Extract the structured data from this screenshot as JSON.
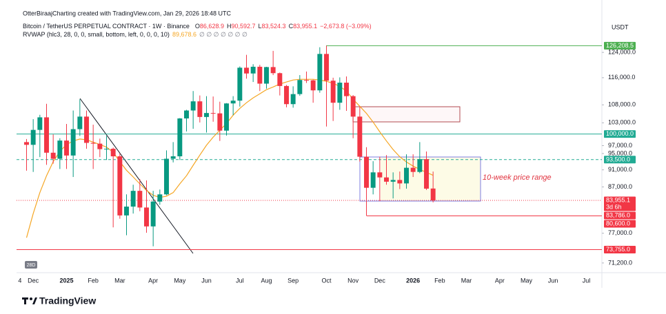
{
  "chart_data": {
    "type": "candlestick",
    "attribution": "OtterBiraajCharting created with TradingView.com, Jan 29, 2026 18:48 UTC",
    "symbol": "Bitcoin / TetherUS PERPETUAL CONTRACT · 1W · Binance",
    "ohlc_legend": [
      {
        "key": "O",
        "value": "86,628.9"
      },
      {
        "key": "H",
        "value": "90,592.7"
      },
      {
        "key": "L",
        "value": "83,524.3"
      },
      {
        "key": "C",
        "value": "83,955.1"
      }
    ],
    "change": "−2,673.8 (−3.09%)",
    "indicator": {
      "name": "RVWAP (hlc3, 28, 0, 0, small, bottom, left, 0, 0, 0, 10)",
      "value": "89,678.6",
      "extra": "∅ ∅ ∅ ∅ ∅ ∅ ∅"
    },
    "currency": "USDT",
    "badge": "28D",
    "brand": "TradingView",
    "annotation": "10-week price range",
    "log": true,
    "ylim": [
      69400,
      139800
    ],
    "yticks": [
      {
        "value": 124000,
        "label": "124,000.0"
      },
      {
        "value": 116000,
        "label": "116,000.0"
      },
      {
        "value": 108000,
        "label": "108,000.0"
      },
      {
        "value": 103000,
        "label": "103,000.0"
      },
      {
        "value": 97000,
        "label": "97,000.0"
      },
      {
        "value": 95000,
        "label": "95,000.0"
      },
      {
        "value": 91000,
        "label": "91,000.0"
      },
      {
        "value": 87000,
        "label": "87,000.0"
      },
      {
        "value": 77000,
        "label": "77,000.0"
      },
      {
        "value": 71200,
        "label": "71,200.0"
      }
    ],
    "up_color": "#089981",
    "down_color": "#f23645",
    "categories": [
      "4",
      null,
      "Dec",
      null,
      null,
      null,
      null,
      "2025",
      null,
      null,
      null,
      "Feb",
      null,
      null,
      null,
      "Mar",
      null,
      null,
      null,
      null,
      "Apr",
      null,
      null,
      null,
      "May",
      null,
      null,
      null,
      "Jun",
      null,
      null,
      null,
      null,
      "Jul",
      null,
      null,
      null,
      "Aug",
      null,
      null,
      null,
      "Sep",
      null,
      null,
      null,
      null,
      "Oct",
      null,
      null,
      null,
      "Nov",
      null,
      null,
      null,
      "Dec",
      null,
      null,
      null,
      null,
      "2026",
      null,
      null,
      null,
      "Feb",
      null,
      null,
      null,
      "Mar",
      null,
      null,
      null,
      null,
      "Apr",
      null,
      null,
      null,
      "May",
      null,
      null,
      null,
      "Jun",
      null,
      null,
      null,
      null,
      "Jul",
      null
    ],
    "open": [
      null,
      97900,
      97200,
      101100,
      104500,
      95200,
      93700,
      98300,
      94500,
      101300,
      104700,
      97700,
      97500,
      96100,
      96200,
      94300,
      80700,
      82600,
      86100,
      82400,
      78400,
      83700,
      85300,
      93700,
      94300,
      104200,
      106400,
      109000,
      104600,
      105700,
      105600,
      100900,
      108400,
      109200,
      119100,
      117300,
      119400,
      114200,
      119300,
      117400,
      113500,
      108200,
      111100,
      115300,
      115200,
      112200,
      123500,
      115100,
      108600,
      114500,
      110500,
      104700,
      94200,
      86800,
      90400,
      89200,
      88200,
      88600,
      87800,
      91500,
      90500,
      93600,
      86628.9,
      null,
      null,
      null,
      null,
      null,
      null,
      null,
      null,
      null,
      null,
      null,
      null,
      null,
      null,
      null,
      null,
      null,
      null,
      null,
      null,
      null,
      null,
      null,
      null
    ],
    "high": [
      null,
      98700,
      104000,
      105200,
      108300,
      99900,
      98900,
      102700,
      106400,
      109600,
      106400,
      102500,
      98800,
      99500,
      96500,
      95000,
      85300,
      87500,
      88800,
      88500,
      86100,
      86400,
      95800,
      97900,
      104300,
      106600,
      112000,
      110700,
      110500,
      110400,
      108900,
      108500,
      110500,
      119500,
      123200,
      120200,
      120000,
      119400,
      124500,
      117600,
      113800,
      113400,
      116800,
      117900,
      115400,
      125700,
      126200,
      116000,
      116100,
      116400,
      110800,
      107500,
      96600,
      93100,
      94200,
      94600,
      90400,
      90600,
      94800,
      94800,
      97900,
      95500,
      90592.7,
      null,
      null,
      null,
      null,
      null,
      null,
      null,
      null,
      null,
      null,
      null,
      null,
      null,
      null,
      null,
      null,
      null,
      null,
      null,
      null,
      null,
      null,
      null,
      null
    ],
    "low": [
      null,
      90800,
      90500,
      94100,
      92200,
      92500,
      91200,
      91200,
      89300,
      99500,
      96200,
      91200,
      94100,
      93400,
      78200,
      80000,
      76600,
      81100,
      81600,
      77100,
      74400,
      83000,
      85100,
      92800,
      93400,
      100700,
      101400,
      103100,
      100400,
      103300,
      98200,
      99600,
      105100,
      107500,
      115700,
      114700,
      112000,
      112700,
      116800,
      110700,
      107300,
      107200,
      110600,
      114400,
      108600,
      111500,
      102000,
      103500,
      106600,
      106300,
      98900,
      93000,
      80600,
      85300,
      83800,
      87500,
      84400,
      86500,
      86600,
      89300,
      90200,
      86300,
      83524.3,
      null,
      null,
      null,
      null,
      null,
      null,
      null,
      null,
      null,
      null,
      null,
      null,
      null,
      null,
      null,
      null,
      null,
      null,
      null,
      null,
      null,
      null,
      null,
      null
    ],
    "close": [
      null,
      97200,
      101100,
      104500,
      95200,
      93700,
      98300,
      94500,
      101300,
      104700,
      97700,
      97500,
      96100,
      96200,
      94300,
      80700,
      82600,
      86100,
      82400,
      78400,
      83700,
      85300,
      93700,
      94300,
      104200,
      106400,
      109000,
      104600,
      105700,
      105600,
      100900,
      108400,
      109200,
      119100,
      117300,
      119400,
      114200,
      119300,
      117400,
      113500,
      108200,
      111100,
      115300,
      115200,
      112200,
      123500,
      115100,
      108600,
      114500,
      110500,
      104700,
      94200,
      86800,
      90400,
      89200,
      88200,
      88600,
      87800,
      91500,
      90500,
      93600,
      86600,
      83955.1,
      null,
      null,
      null,
      null,
      null,
      null,
      null,
      null,
      null,
      null,
      null,
      null,
      null,
      null,
      null,
      null,
      null,
      null,
      null,
      null,
      null,
      null,
      null,
      null
    ],
    "rvwap": {
      "color": "#f5a623",
      "values": [
        null,
        76100,
        81100,
        85700,
        89600,
        93000,
        95500,
        97300,
        98200,
        98700,
        98500,
        97900,
        97300,
        96600,
        95300,
        93000,
        90900,
        89300,
        87700,
        86200,
        85100,
        84600,
        84900,
        85700,
        87700,
        89600,
        92100,
        94600,
        97100,
        99200,
        101000,
        102800,
        105100,
        107000,
        108600,
        110000,
        111200,
        112400,
        113200,
        114100,
        114700,
        115300,
        115500,
        115500,
        115500,
        115300,
        114900,
        114300,
        113400,
        112000,
        109600,
        107600,
        105600,
        103200,
        100600,
        98200,
        96000,
        94200,
        92900,
        91900,
        91100,
        90400,
        89700,
        null,
        null,
        null,
        null,
        null,
        null,
        null,
        null,
        null,
        null,
        null,
        null,
        null,
        null,
        null,
        null,
        null,
        null,
        null,
        null,
        null,
        null,
        null,
        null
      ]
    },
    "levels": [
      {
        "value": 126208.5,
        "label": "126,208.5",
        "color": "#4caf50",
        "style": "solid"
      },
      {
        "value": 100000,
        "label": "100,000.0",
        "color": "#22ab94",
        "style": "solid"
      },
      {
        "value": 93500,
        "label": "93,500.0",
        "color": "#22ab94",
        "style": "dashed"
      },
      {
        "value": 83955.1,
        "label": "83,955.1",
        "sub": "3d 6h",
        "color": "#f23645",
        "style": "dotted"
      },
      {
        "value": 83786,
        "label": "83,786.0",
        "color": "#f23645",
        "style": "none"
      },
      {
        "value": 80600,
        "label": "80,600.0",
        "color": "#f23645",
        "style": "solid"
      },
      {
        "value": 73755,
        "label": "73,755.0",
        "color": "#f23645",
        "style": "solid"
      }
    ]
  }
}
